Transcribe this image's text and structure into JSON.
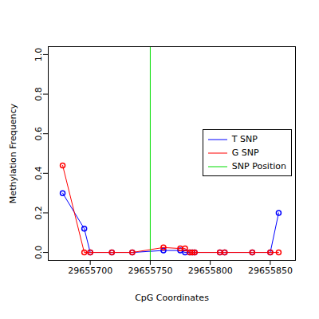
{
  "chart_data": {
    "type": "line",
    "x_label": "CpG Coordinates",
    "y_label": "Methylation Frequency",
    "x": [
      29655677,
      29655695,
      29655700,
      29655718,
      29655735,
      29655761,
      29655775,
      29655779,
      29655783,
      29655785,
      29655787,
      29655808,
      29655812,
      29655835,
      29655850,
      29655857
    ],
    "series": [
      {
        "name": "T SNP",
        "color": "#0000ff",
        "values": [
          0.3,
          0.12,
          0,
          0,
          0,
          0.01,
          0.01,
          0,
          0,
          0,
          0,
          0,
          0,
          0,
          0,
          0.2
        ]
      },
      {
        "name": "G SNP",
        "color": "#ff0000",
        "values": [
          0.44,
          0,
          0,
          0,
          0,
          0.025,
          0.02,
          0.02,
          0,
          0,
          0,
          0,
          0,
          0,
          0,
          0
        ]
      }
    ],
    "vlines": [
      {
        "name": "SNP Position",
        "x": 29655750,
        "color": "#00dd00"
      }
    ],
    "xlim": [
      29655665,
      29655871
    ],
    "ylim": [
      -0.04,
      1.04
    ],
    "xticks": [
      29655700,
      29655750,
      29655800,
      29655850
    ],
    "yticks": [
      {
        "value": 0,
        "label": "0.0"
      },
      0.2,
      0.4,
      0.6,
      0.8,
      {
        "value": 1,
        "label": "1.0"
      }
    ],
    "marker": "open circle",
    "legend": "right",
    "grid": false
  }
}
